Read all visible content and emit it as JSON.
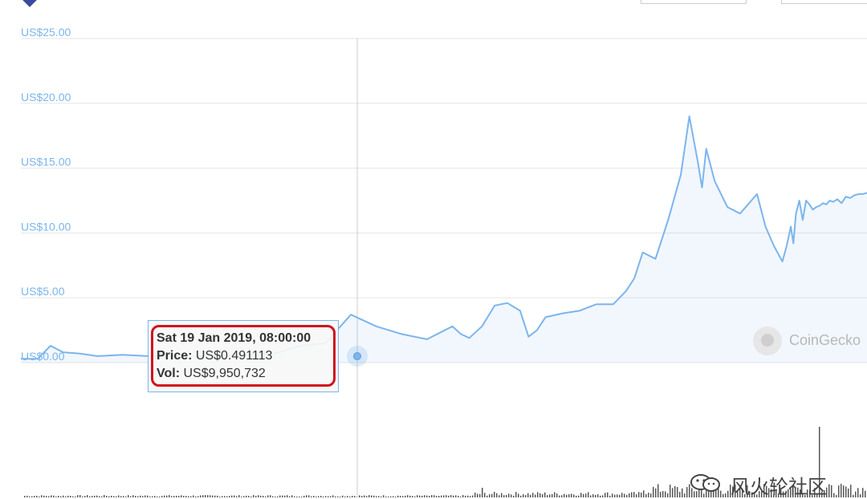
{
  "chart_data": {
    "type": "area",
    "title": "",
    "xlabel": "",
    "ylabel": "",
    "ylim": [
      0,
      25
    ],
    "y_ticks": [
      "US$0.00",
      "US$5.00",
      "US$10.00",
      "US$15.00",
      "US$20.00",
      "US$25.00"
    ],
    "y_tick_values": [
      0,
      5,
      10,
      15,
      20,
      25
    ],
    "grid": true,
    "legend": "none",
    "series": [
      {
        "color": "#7cb5ec",
        "x": [
          0,
          0.02,
          0.035,
          0.05,
          0.07,
          0.09,
          0.12,
          0.15,
          0.18,
          0.21,
          0.24,
          0.27,
          0.3,
          0.33,
          0.36,
          0.39,
          0.42,
          0.45,
          0.48,
          0.51,
          0.52,
          0.53,
          0.545,
          0.56,
          0.575,
          0.59,
          0.6,
          0.61,
          0.62,
          0.64,
          0.66,
          0.68,
          0.7,
          0.715,
          0.725,
          0.735,
          0.75,
          0.765,
          0.78,
          0.79,
          0.8,
          0.805,
          0.81,
          0.82,
          0.835,
          0.85,
          0.87,
          0.88,
          0.89,
          0.9,
          0.905,
          0.91,
          0.913,
          0.916,
          0.92,
          0.924,
          0.928,
          0.932,
          0.936,
          0.94,
          0.944,
          0.948,
          0.952,
          0.956,
          0.96,
          0.965,
          0.97,
          0.975,
          0.98,
          0.985,
          0.99,
          0.995,
          1.0
        ],
        "values": [
          0.3,
          0.3,
          1.3,
          0.8,
          0.7,
          0.5,
          0.6,
          0.5,
          0.49,
          0.48,
          0.55,
          0.6,
          0.7,
          1.3,
          1.5,
          3.7,
          2.8,
          2.2,
          1.8,
          2.8,
          2.2,
          1.9,
          2.8,
          4.4,
          4.6,
          4.0,
          2.0,
          2.5,
          3.5,
          3.8,
          4.0,
          4.5,
          4.5,
          5.5,
          6.5,
          8.5,
          8.0,
          11.0,
          14.5,
          19.0,
          15.5,
          13.5,
          16.5,
          14.0,
          12.0,
          11.5,
          13.0,
          10.5,
          9.0,
          7.8,
          9.0,
          10.5,
          9.2,
          11.5,
          12.5,
          11.0,
          12.5,
          12.2,
          11.8,
          12.0,
          12.1,
          12.3,
          12.2,
          12.5,
          12.4,
          12.6,
          12.3,
          12.8,
          12.7,
          12.9,
          13.0,
          13.0,
          13.1
        ]
      }
    ],
    "tooltip": {
      "date": "Sat 19 Jan 2019, 08:00:00",
      "price_label": "Price:",
      "price_value": "US$0.491113",
      "vol_label": "Vol:",
      "vol_value": "US$9,950,732"
    }
  },
  "watermark": {
    "brand": "CoinGecko",
    "social_handle": "风火轮社区"
  }
}
